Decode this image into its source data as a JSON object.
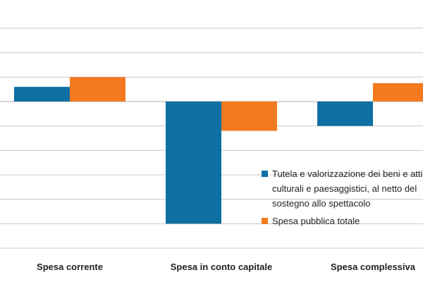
{
  "colors": {
    "series1": "#0e6fa3",
    "series2": "#f47a20",
    "grid": "#c8c8c8"
  },
  "chart_data": {
    "type": "bar",
    "categories": [
      "Spesa corrente",
      "Spesa in conto capitale",
      "Spesa complessiva"
    ],
    "series": [
      {
        "name": "Tutela e valorizzazione dei beni e atti culturali e paesaggistici, al netto del sostegno allo spettacolo",
        "legend_lines": [
          "Tutela e valorizzazione dei beni e atti",
          "culturali e paesaggistici, al netto del",
          "sostegno allo spettacolo"
        ],
        "values": [
          0.6,
          -5.0,
          -1.0
        ]
      },
      {
        "name": "Spesa pubblica totale",
        "legend_lines": [
          "Spesa pubblica totale"
        ],
        "values": [
          1.0,
          -1.2,
          0.75
        ]
      }
    ],
    "ylim": [
      -6,
      3
    ],
    "grid": true,
    "legend_position": "bottom-right",
    "title": "",
    "xlabel": "",
    "ylabel": ""
  }
}
